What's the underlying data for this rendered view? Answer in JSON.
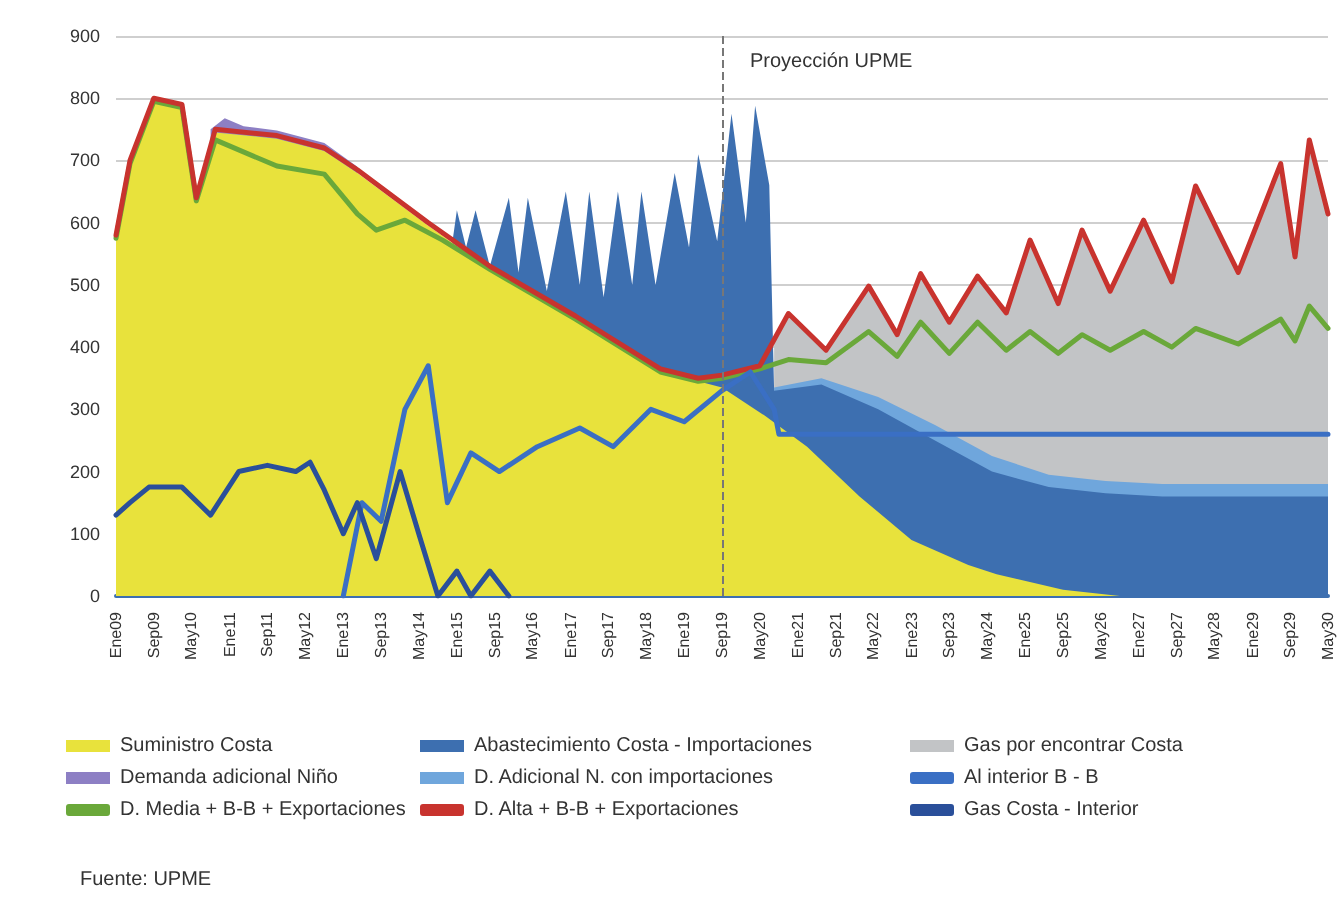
{
  "chart_data": {
    "type": "area",
    "ylim": [
      0,
      900
    ],
    "yticks": [
      0,
      100,
      200,
      300,
      400,
      500,
      600,
      700,
      800,
      900
    ],
    "xlim": [
      "2009-01",
      "2030-05"
    ],
    "xticks": [
      {
        "value": "2009-01",
        "label": "Ene09"
      },
      {
        "value": "2009-09",
        "label": "Sep09"
      },
      {
        "value": "2010-05",
        "label": "May10"
      },
      {
        "value": "2011-01",
        "label": "Ene11"
      },
      {
        "value": "2011-09",
        "label": "Sep11"
      },
      {
        "value": "2012-05",
        "label": "May12"
      },
      {
        "value": "2013-01",
        "label": "Ene13"
      },
      {
        "value": "2013-09",
        "label": "Sep13"
      },
      {
        "value": "2014-05",
        "label": "May14"
      },
      {
        "value": "2015-01",
        "label": "Ene15"
      },
      {
        "value": "2015-09",
        "label": "Sep15"
      },
      {
        "value": "2016-05",
        "label": "May16"
      },
      {
        "value": "2017-01",
        "label": "Ene17"
      },
      {
        "value": "2017-09",
        "label": "Sep17"
      },
      {
        "value": "2018-05",
        "label": "May18"
      },
      {
        "value": "2019-01",
        "label": "Ene19"
      },
      {
        "value": "2019-09",
        "label": "Sep19"
      },
      {
        "value": "2020-05",
        "label": "May20"
      },
      {
        "value": "2021-01",
        "label": "Ene21"
      },
      {
        "value": "2021-09",
        "label": "Sep21"
      },
      {
        "value": "2022-05",
        "label": "May22"
      },
      {
        "value": "2023-01",
        "label": "Ene23"
      },
      {
        "value": "2023-09",
        "label": "Sep23"
      },
      {
        "value": "2024-05",
        "label": "May24"
      },
      {
        "value": "2025-01",
        "label": "Ene25"
      },
      {
        "value": "2025-09",
        "label": "Sep25"
      },
      {
        "value": "2026-05",
        "label": "May26"
      },
      {
        "value": "2027-01",
        "label": "Ene27"
      },
      {
        "value": "2027-09",
        "label": "Sep27"
      },
      {
        "value": "2028-05",
        "label": "May28"
      },
      {
        "value": "2029-01",
        "label": "Ene29"
      },
      {
        "value": "2029-09",
        "label": "Sep29"
      },
      {
        "value": "2030-05",
        "label": "May30"
      }
    ],
    "grid": "y",
    "legend": "bottom",
    "ref_lines": [
      {
        "axis": "x",
        "value": "2019-09",
        "label": "Proyección UPME",
        "color": "#777777",
        "line_style": "dashed"
      }
    ],
    "annotations": [
      "Fuente: UPME"
    ],
    "series": [
      {
        "name": "Gas por encontrar Costa",
        "color": "#c2c4c6",
        "x": [
          "2020-08",
          "2020-11",
          "2021-07",
          "2022-04",
          "2022-10",
          "2023-03",
          "2023-09",
          "2024-03",
          "2024-09",
          "2025-02",
          "2025-08",
          "2026-01",
          "2026-07",
          "2027-02",
          "2027-08",
          "2028-01",
          "2028-10",
          "2029-07",
          "2029-10",
          "2030-01",
          "2030-05"
        ],
        "values": [
          410,
          454,
          395,
          498,
          420,
          518,
          440,
          514,
          455,
          572,
          470,
          588,
          490,
          604,
          505,
          659,
          520,
          695,
          545,
          733,
          614
        ]
      },
      {
        "name": "D. Adicional N. con importaciones",
        "color": "#6fa6dc",
        "x": [
          "2020-08",
          "2021-06",
          "2022-06",
          "2023-06",
          "2024-06",
          "2025-06",
          "2026-06",
          "2027-06",
          "2030-05"
        ],
        "values": [
          335,
          350,
          320,
          275,
          225,
          195,
          185,
          180,
          180
        ]
      },
      {
        "name": "Abastecimiento Costa - Importaciones",
        "color": "#3d6fb0",
        "x": [
          "2014-12",
          "2015-01",
          "2015-03",
          "2015-05",
          "2015-08",
          "2015-12",
          "2016-02",
          "2016-04",
          "2016-08",
          "2016-12",
          "2017-03",
          "2017-05",
          "2017-08",
          "2017-11",
          "2018-02",
          "2018-04",
          "2018-07",
          "2018-11",
          "2019-02",
          "2019-04",
          "2019-08",
          "2019-11",
          "2020-02",
          "2020-04",
          "2020-07",
          "2020-08",
          "2021-06",
          "2022-06",
          "2023-06",
          "2024-06",
          "2025-06",
          "2026-06",
          "2027-06",
          "2030-05"
        ],
        "values": [
          565,
          620,
          560,
          620,
          530,
          640,
          520,
          640,
          490,
          650,
          500,
          650,
          480,
          650,
          500,
          650,
          500,
          680,
          560,
          710,
          570,
          775,
          600,
          788,
          660,
          330,
          340,
          300,
          250,
          200,
          175,
          165,
          160,
          160
        ]
      },
      {
        "name": "Demanda adicional Niño",
        "color": "#8d7fc4",
        "x": [
          "2010-09",
          "2010-12",
          "2011-04",
          "2011-11",
          "2012-09",
          "2013-04"
        ],
        "values": [
          750,
          768,
          755,
          748,
          728,
          690
        ]
      },
      {
        "name": "Suministro Costa",
        "color": "#e8e23c",
        "x": [
          "2009-01",
          "2009-04",
          "2009-09",
          "2010-03",
          "2010-06",
          "2010-10",
          "2011-11",
          "2012-09",
          "2013-04",
          "2014-07",
          "2015-08",
          "2017-02",
          "2018-08",
          "2019-04",
          "2019-09",
          "2020-06",
          "2021-03",
          "2022-02",
          "2023-01",
          "2024-01",
          "2024-07",
          "2025-09",
          "2026-09",
          "2030-05"
        ],
        "values": [
          575,
          695,
          795,
          785,
          635,
          745,
          735,
          715,
          680,
          595,
          525,
          445,
          360,
          345,
          335,
          290,
          240,
          160,
          90,
          50,
          35,
          10,
          0,
          0
        ]
      },
      {
        "name": "D. Media + B-B + Exportaciones",
        "type": "line",
        "color": "#6aa83a",
        "x": [
          "2009-01",
          "2009-04",
          "2009-09",
          "2010-03",
          "2010-06",
          "2010-10",
          "2011-11",
          "2012-09",
          "2013-04",
          "2013-08",
          "2014-02",
          "2014-10",
          "2015-08",
          "2017-02",
          "2018-08",
          "2019-04",
          "2019-09",
          "2020-05",
          "2020-11",
          "2021-07",
          "2022-04",
          "2022-10",
          "2023-03",
          "2023-09",
          "2024-03",
          "2024-09",
          "2025-02",
          "2025-08",
          "2026-01",
          "2026-07",
          "2027-02",
          "2027-08",
          "2028-01",
          "2028-10",
          "2029-07",
          "2029-10",
          "2030-01",
          "2030-05"
        ],
        "values": [
          575,
          695,
          795,
          785,
          635,
          733,
          691,
          678,
          614,
          588,
          604,
          572,
          525,
          445,
          360,
          345,
          350,
          365,
          380,
          375,
          425,
          385,
          440,
          390,
          440,
          395,
          425,
          390,
          420,
          395,
          425,
          400,
          430,
          405,
          445,
          410,
          466,
          430
        ]
      },
      {
        "name": "D. Alta + B-B + Exportaciones",
        "type": "line",
        "color": "#c8332e",
        "x": [
          "2009-01",
          "2009-04",
          "2009-09",
          "2010-03",
          "2010-06",
          "2010-10",
          "2011-11",
          "2012-09",
          "2013-04",
          "2014-07",
          "2015-08",
          "2017-02",
          "2018-08",
          "2019-04",
          "2019-09",
          "2020-05",
          "2020-11",
          "2021-07",
          "2022-04",
          "2022-10",
          "2023-03",
          "2023-09",
          "2024-03",
          "2024-09",
          "2025-02",
          "2025-08",
          "2026-01",
          "2026-07",
          "2027-02",
          "2027-08",
          "2028-01",
          "2028-10",
          "2029-07",
          "2029-10",
          "2030-01",
          "2030-05"
        ],
        "values": [
          580,
          700,
          800,
          790,
          640,
          750,
          740,
          720,
          685,
          600,
          530,
          450,
          365,
          350,
          355,
          370,
          454,
          395,
          498,
          420,
          518,
          440,
          514,
          455,
          572,
          470,
          588,
          490,
          604,
          505,
          659,
          520,
          695,
          545,
          733,
          614
        ]
      },
      {
        "name": "Al interior B - B",
        "type": "line",
        "color": "#3a6fc4",
        "x": [
          "2013-01",
          "2013-05",
          "2013-09",
          "2014-02",
          "2014-07",
          "2014-11",
          "2015-04",
          "2015-10",
          "2016-06",
          "2017-03",
          "2017-10",
          "2018-06",
          "2019-01",
          "2019-09",
          "2020-03",
          "2020-08",
          "2020-09",
          "2030-05"
        ],
        "values": [
          0,
          150,
          120,
          300,
          370,
          150,
          230,
          200,
          240,
          270,
          240,
          300,
          280,
          330,
          360,
          300,
          260,
          260
        ]
      },
      {
        "name": "Gas Costa - Interior",
        "type": "line",
        "color": "#2a4f9a",
        "x": [
          "2009-01",
          "2009-04",
          "2009-08",
          "2010-03",
          "2010-09",
          "2011-03",
          "2011-09",
          "2012-03",
          "2012-06",
          "2012-09",
          "2013-01",
          "2013-04",
          "2013-08",
          "2014-01",
          "2014-05",
          "2014-09",
          "2015-01",
          "2015-04",
          "2015-08",
          "2015-12"
        ],
        "values": [
          130,
          150,
          175,
          175,
          130,
          200,
          210,
          200,
          215,
          170,
          100,
          150,
          60,
          200,
          100,
          0,
          40,
          0,
          40,
          0
        ]
      }
    ]
  }
}
